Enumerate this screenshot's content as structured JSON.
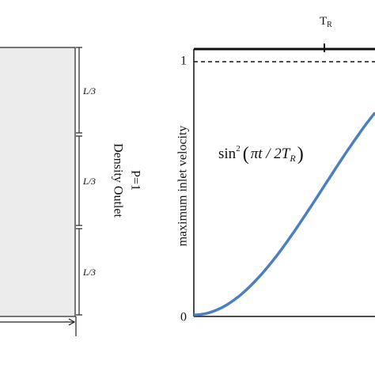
{
  "left_panel": {
    "dimension_labels": [
      "L/3",
      "L/3",
      "L/3"
    ],
    "boundary_label": "Density Outlet",
    "boundary_condition": "P=1"
  },
  "right_panel": {
    "y_axis_label": "maximum inlet velocity",
    "y_tick_top": "1",
    "y_tick_bottom": "0",
    "period_label": {
      "main": "T",
      "sub": "R"
    },
    "curve_label": {
      "func": "sin",
      "power": "2",
      "open": "(",
      "arg": "πt / 2T",
      "arg_sub": "R",
      "close": ")"
    }
  }
}
